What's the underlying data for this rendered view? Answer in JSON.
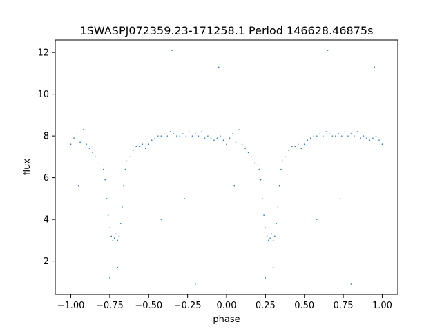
{
  "chart_data": {
    "type": "scatter",
    "title": "1SWASPJ072359.23-171258.1 Period 146628.46875s",
    "xlabel": "phase",
    "ylabel": "flux",
    "xlim": [
      -1.1,
      1.1
    ],
    "ylim": [
      0.4,
      12.6
    ],
    "xticks": [
      -1.0,
      -0.75,
      -0.5,
      -0.25,
      0.0,
      0.25,
      0.5,
      0.75,
      1.0
    ],
    "xtick_labels": [
      "−1.00",
      "−0.75",
      "−0.50",
      "−0.25",
      "0.00",
      "0.25",
      "0.50",
      "0.75",
      "1.00"
    ],
    "yticks": [
      2,
      4,
      6,
      8,
      10,
      12
    ],
    "ytick_labels": [
      "2",
      "4",
      "6",
      "8",
      "10",
      "12"
    ],
    "grid": false,
    "legend": "none",
    "marker_color": "#1f77b4",
    "description_of_points": "dense scatter of flux vs. folded phase, baseline ~7.5-8.5, primary eclipse minima near phase -0.71 and 0.29 reaching ~2.5-3.5, secondary dips near -0.80/-0.66 and 0.20/0.34 around ~6.5",
    "points": [
      [
        -1.0,
        7.6
      ],
      [
        -0.98,
        7.9
      ],
      [
        -0.96,
        8.1
      ],
      [
        -0.94,
        7.7
      ],
      [
        -0.92,
        8.3
      ],
      [
        -0.9,
        7.6
      ],
      [
        -0.88,
        7.4
      ],
      [
        -0.86,
        7.2
      ],
      [
        -0.84,
        7.0
      ],
      [
        -0.82,
        6.7
      ],
      [
        -0.8,
        6.6
      ],
      [
        -0.79,
        6.4
      ],
      [
        -0.78,
        5.9
      ],
      [
        -0.77,
        5.0
      ],
      [
        -0.76,
        4.2
      ],
      [
        -0.75,
        3.6
      ],
      [
        -0.74,
        3.2
      ],
      [
        -0.73,
        3.0
      ],
      [
        -0.72,
        3.1
      ],
      [
        -0.71,
        3.3
      ],
      [
        -0.7,
        3.0
      ],
      [
        -0.69,
        3.2
      ],
      [
        -0.68,
        3.8
      ],
      [
        -0.67,
        4.6
      ],
      [
        -0.66,
        5.6
      ],
      [
        -0.65,
        6.4
      ],
      [
        -0.64,
        6.8
      ],
      [
        -0.62,
        7.0
      ],
      [
        -0.6,
        7.3
      ],
      [
        -0.58,
        7.5
      ],
      [
        -0.56,
        7.5
      ],
      [
        -0.54,
        7.6
      ],
      [
        -0.52,
        7.4
      ],
      [
        -0.5,
        7.6
      ],
      [
        -0.48,
        7.8
      ],
      [
        -0.46,
        7.9
      ],
      [
        -0.44,
        8.0
      ],
      [
        -0.42,
        8.0
      ],
      [
        -0.4,
        8.1
      ],
      [
        -0.38,
        8.0
      ],
      [
        -0.36,
        8.2
      ],
      [
        -0.34,
        8.1
      ],
      [
        -0.32,
        8.0
      ],
      [
        -0.3,
        8.0
      ],
      [
        -0.28,
        8.1
      ],
      [
        -0.26,
        8.0
      ],
      [
        -0.24,
        8.2
      ],
      [
        -0.22,
        8.0
      ],
      [
        -0.2,
        8.1
      ],
      [
        -0.18,
        8.0
      ],
      [
        -0.16,
        8.2
      ],
      [
        -0.14,
        7.9
      ],
      [
        -0.12,
        8.0
      ],
      [
        -0.1,
        7.9
      ],
      [
        -0.08,
        7.8
      ],
      [
        -0.06,
        7.9
      ],
      [
        -0.04,
        8.0
      ],
      [
        -0.02,
        7.8
      ],
      [
        0.0,
        7.6
      ],
      [
        0.02,
        7.9
      ],
      [
        0.04,
        8.1
      ],
      [
        0.06,
        7.7
      ],
      [
        0.08,
        8.3
      ],
      [
        0.1,
        7.6
      ],
      [
        0.12,
        7.4
      ],
      [
        0.14,
        7.2
      ],
      [
        0.16,
        7.0
      ],
      [
        0.18,
        6.7
      ],
      [
        0.2,
        6.6
      ],
      [
        0.21,
        6.4
      ],
      [
        0.22,
        5.9
      ],
      [
        0.23,
        5.0
      ],
      [
        0.24,
        4.2
      ],
      [
        0.25,
        3.6
      ],
      [
        0.26,
        3.2
      ],
      [
        0.27,
        3.0
      ],
      [
        0.28,
        3.1
      ],
      [
        0.29,
        3.3
      ],
      [
        0.3,
        3.0
      ],
      [
        0.31,
        3.2
      ],
      [
        0.32,
        3.8
      ],
      [
        0.33,
        4.6
      ],
      [
        0.34,
        5.6
      ],
      [
        0.35,
        6.4
      ],
      [
        0.36,
        6.8
      ],
      [
        0.38,
        7.0
      ],
      [
        0.4,
        7.3
      ],
      [
        0.42,
        7.5
      ],
      [
        0.44,
        7.5
      ],
      [
        0.46,
        7.6
      ],
      [
        0.48,
        7.4
      ],
      [
        0.5,
        7.6
      ],
      [
        0.52,
        7.8
      ],
      [
        0.54,
        7.9
      ],
      [
        0.56,
        8.0
      ],
      [
        0.58,
        8.0
      ],
      [
        0.6,
        8.1
      ],
      [
        0.62,
        8.0
      ],
      [
        0.64,
        8.2
      ],
      [
        0.66,
        8.1
      ],
      [
        0.68,
        8.0
      ],
      [
        0.7,
        8.0
      ],
      [
        0.72,
        8.1
      ],
      [
        0.74,
        8.0
      ],
      [
        0.76,
        8.2
      ],
      [
        0.78,
        8.0
      ],
      [
        0.8,
        8.1
      ],
      [
        0.82,
        8.0
      ],
      [
        0.84,
        8.2
      ],
      [
        0.86,
        7.9
      ],
      [
        0.88,
        8.0
      ],
      [
        0.9,
        7.9
      ],
      [
        0.92,
        7.8
      ],
      [
        0.94,
        7.9
      ],
      [
        0.96,
        8.0
      ],
      [
        0.98,
        7.8
      ],
      [
        1.0,
        7.6
      ],
      [
        -0.35,
        12.1
      ],
      [
        0.65,
        12.1
      ],
      [
        -0.05,
        11.3
      ],
      [
        0.95,
        11.3
      ],
      [
        -0.2,
        0.9
      ],
      [
        0.8,
        0.9
      ],
      [
        -0.75,
        1.2
      ],
      [
        0.25,
        1.2
      ],
      [
        -0.7,
        1.7
      ],
      [
        0.3,
        1.7
      ],
      [
        -0.95,
        5.6
      ],
      [
        0.05,
        5.6
      ],
      [
        -0.42,
        4.0
      ],
      [
        0.58,
        4.0
      ],
      [
        -0.27,
        5.0
      ],
      [
        0.73,
        5.0
      ]
    ]
  }
}
